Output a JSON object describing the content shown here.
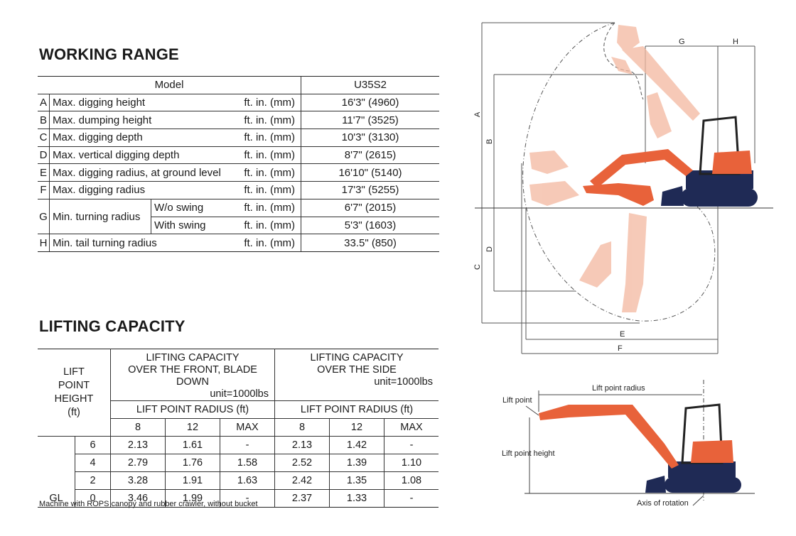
{
  "working_range": {
    "title": "WORKING RANGE",
    "header": {
      "model_label": "Model",
      "model_value": "U35S2"
    },
    "rows": [
      {
        "letter": "A",
        "item": "Max. digging height",
        "unit": "ft. in. (mm)",
        "value": "16'3\" (4960)"
      },
      {
        "letter": "B",
        "item": "Max. dumping height",
        "unit": "ft. in. (mm)",
        "value": "11'7\" (3525)"
      },
      {
        "letter": "C",
        "item": "Max. digging depth",
        "unit": "ft. in. (mm)",
        "value": "10'3\" (3130)"
      },
      {
        "letter": "D",
        "item": "Max. vertical digging depth",
        "unit": "ft. in. (mm)",
        "value": "8'7\" (2615)"
      },
      {
        "letter": "E",
        "item": "Max. digging radius, at ground level",
        "unit": "ft. in. (mm)",
        "value": "16'10\" (5140)"
      },
      {
        "letter": "F",
        "item": "Max. digging radius",
        "unit": "ft. in. (mm)",
        "value": "17'3\" (5255)"
      },
      {
        "letter": "G",
        "item": "Min. turning radius",
        "sub": "W/o swing",
        "unit": "ft. in. (mm)",
        "value": "6'7\" (2015)"
      },
      {
        "sub": "With swing",
        "unit": "ft. in. (mm)",
        "value": "5'3\" (1603)"
      },
      {
        "letter": "H",
        "item": "Min. tail turning radius",
        "unit": "ft. in. (mm)",
        "value": "33.5\" (850)"
      }
    ]
  },
  "lifting_capacity": {
    "title": "LIFTING CAPACITY",
    "lift_head": [
      "LIFT",
      "POINT",
      "HEIGHT",
      "(ft)"
    ],
    "front_head": [
      "LIFTING CAPACITY",
      "OVER THE FRONT, BLADE DOWN"
    ],
    "side_head": [
      "LIFTING CAPACITY",
      "OVER THE SIDE"
    ],
    "unit": "unit=1000lbs",
    "radius_label": "LIFT POINT RADIUS (ft)",
    "radii": [
      "8",
      "12",
      "MAX"
    ],
    "gl_label": "GL",
    "rows": [
      {
        "h": "6",
        "front": [
          "2.13",
          "1.61",
          "-"
        ],
        "side": [
          "2.13",
          "1.42",
          "-"
        ]
      },
      {
        "h": "4",
        "front": [
          "2.79",
          "1.76",
          "1.58"
        ],
        "side": [
          "2.52",
          "1.39",
          "1.10"
        ]
      },
      {
        "h": "2",
        "front": [
          "3.28",
          "1.91",
          "1.63"
        ],
        "side": [
          "2.42",
          "1.35",
          "1.08"
        ]
      },
      {
        "h": "0",
        "front": [
          "3.46",
          "1.99",
          "-"
        ],
        "side": [
          "2.37",
          "1.33",
          "-"
        ]
      }
    ],
    "footnote": "Machine with ROPS canopy and rubber crawler, without bucket"
  },
  "diagram": {
    "dim_labels": {
      "A": "A",
      "B": "B",
      "C": "C",
      "D": "D",
      "E": "E",
      "F": "F",
      "G": "G",
      "H": "H"
    },
    "lift_point": "Lift point",
    "lift_point_radius": "Lift point radius",
    "lift_point_height": "Lift point height",
    "axis_of_rotation": "Axis of rotation",
    "colors": {
      "machine_orange": "#e8623a",
      "machine_navy": "#1f2a55",
      "ghost": "#f3b8a0"
    }
  }
}
